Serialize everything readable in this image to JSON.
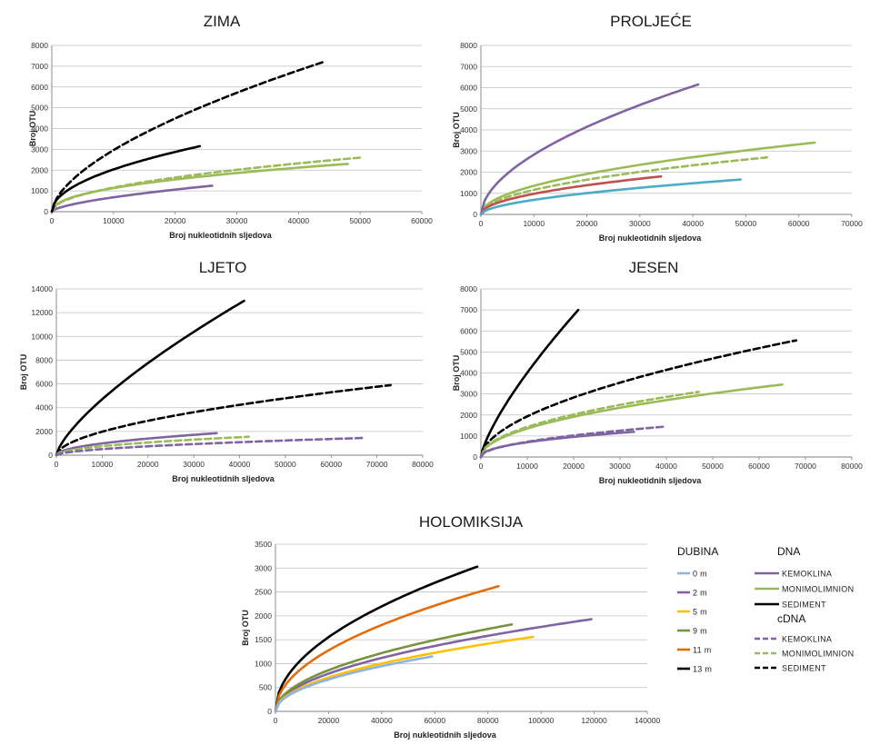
{
  "colors": {
    "purple": "#8064a2",
    "green": "#9bbb59",
    "black": "#000000",
    "red": "#c0504d",
    "blue": "#4bacc6",
    "lightblue": "#8db3e2",
    "yellow": "#ffc000",
    "olive": "#77933c",
    "orange": "#e46c0a",
    "grid": "#bfbfbf"
  },
  "chart_data": [
    {
      "type": "line",
      "title": "ZIMA",
      "xlabel": "Broj nukleotidnih sljedova",
      "ylabel": "Broj OTU",
      "xlim": [
        0,
        60000
      ],
      "ylim": [
        0,
        8000
      ],
      "xticks": [
        0,
        10000,
        20000,
        30000,
        40000,
        50000,
        60000
      ],
      "yticks": [
        0,
        1000,
        2000,
        3000,
        4000,
        5000,
        6000,
        7000,
        8000
      ],
      "xtick_labels": [
        "0",
        "10000",
        "20000",
        "30000",
        "40000",
        "50000",
        "60000"
      ],
      "ytick_labels": [
        "0",
        "1000",
        "2000",
        "3000",
        "4000",
        "5000",
        "6000",
        "7000",
        "8000"
      ],
      "series": [
        {
          "color": "purple",
          "dashed": false,
          "xmax": 26000,
          "ymax": 1250,
          "exp": 0.62
        },
        {
          "color": "green",
          "dashed": false,
          "xmax": 48000,
          "ymax": 2300,
          "exp": 0.45
        },
        {
          "color": "black",
          "dashed": false,
          "xmax": 24000,
          "ymax": 3150,
          "exp": 0.5
        },
        {
          "color": "green",
          "dashed": true,
          "xmax": 50000,
          "ymax": 2600,
          "exp": 0.5
        },
        {
          "color": "black",
          "dashed": true,
          "xmax": 44000,
          "ymax": 7200,
          "exp": 0.6
        }
      ]
    },
    {
      "type": "line",
      "title": "PROLJEĆE",
      "xlabel": "Broj nukleotidnih sljedova",
      "ylabel": "Broj OTU",
      "xlim": [
        0,
        70000
      ],
      "ylim": [
        0,
        8000
      ],
      "xticks": [
        0,
        10000,
        20000,
        30000,
        40000,
        50000,
        60000,
        70000
      ],
      "yticks": [
        0,
        1000,
        2000,
        3000,
        4000,
        5000,
        6000,
        7000,
        8000
      ],
      "xtick_labels": [
        "0",
        "10000",
        "20000",
        "30000",
        "40000",
        "50000",
        "60000",
        "70000"
      ],
      "ytick_labels": [
        "0",
        "1000",
        "2000",
        "3000",
        "4000",
        "5000",
        "6000",
        "7000",
        "8000"
      ],
      "series": [
        {
          "color": "purple",
          "dashed": false,
          "xmax": 41000,
          "ymax": 6150,
          "exp": 0.55
        },
        {
          "color": "green",
          "dashed": false,
          "xmax": 63000,
          "ymax": 3400,
          "exp": 0.5
        },
        {
          "color": "green",
          "dashed": true,
          "xmax": 54000,
          "ymax": 2700,
          "exp": 0.5
        },
        {
          "color": "red",
          "dashed": false,
          "xmax": 34000,
          "ymax": 1800,
          "exp": 0.5
        },
        {
          "color": "blue",
          "dashed": false,
          "xmax": 49000,
          "ymax": 1650,
          "exp": 0.55
        }
      ]
    },
    {
      "type": "line",
      "title": "LJETO",
      "xlabel": "Broj nukleotidnih sljedova",
      "ylabel": "Broj OTU",
      "xlim": [
        0,
        80000
      ],
      "ylim": [
        0,
        14000
      ],
      "xticks": [
        0,
        10000,
        20000,
        30000,
        40000,
        50000,
        60000,
        70000,
        80000
      ],
      "yticks": [
        0,
        2000,
        4000,
        6000,
        8000,
        10000,
        12000,
        14000
      ],
      "xtick_labels": [
        "0",
        "10000",
        "20000",
        "30000",
        "40000",
        "50000",
        "60000",
        "70000",
        "80000"
      ],
      "ytick_labels": [
        "0",
        "2000",
        "4000",
        "6000",
        "8000",
        "10000",
        "12000",
        "14000"
      ],
      "series": [
        {
          "color": "black",
          "dashed": false,
          "xmax": 41000,
          "ymax": 13000,
          "exp": 0.72
        },
        {
          "color": "black",
          "dashed": true,
          "xmax": 73000,
          "ymax": 5900,
          "exp": 0.55
        },
        {
          "color": "purple",
          "dashed": false,
          "xmax": 35000,
          "ymax": 1850,
          "exp": 0.5
        },
        {
          "color": "green",
          "dashed": true,
          "xmax": 42000,
          "ymax": 1550,
          "exp": 0.5
        },
        {
          "color": "purple",
          "dashed": true,
          "xmax": 67000,
          "ymax": 1450,
          "exp": 0.55
        }
      ]
    },
    {
      "type": "line",
      "title": "JESEN",
      "xlabel": "Broj nukleotidnih sljedova",
      "ylabel": "Broj OTU",
      "xlim": [
        0,
        80000
      ],
      "ylim": [
        0,
        8000
      ],
      "xticks": [
        0,
        10000,
        20000,
        30000,
        40000,
        50000,
        60000,
        70000,
        80000
      ],
      "yticks": [
        0,
        1000,
        2000,
        3000,
        4000,
        5000,
        6000,
        7000,
        8000
      ],
      "xtick_labels": [
        "0",
        "10000",
        "20000",
        "30000",
        "40000",
        "50000",
        "60000",
        "70000",
        "80000"
      ],
      "ytick_labels": [
        "0",
        "1000",
        "2000",
        "3000",
        "4000",
        "5000",
        "6000",
        "7000",
        "8000"
      ],
      "series": [
        {
          "color": "black",
          "dashed": false,
          "xmax": 21000,
          "ymax": 7000,
          "exp": 0.75
        },
        {
          "color": "black",
          "dashed": true,
          "xmax": 68000,
          "ymax": 5550,
          "exp": 0.55
        },
        {
          "color": "green",
          "dashed": false,
          "xmax": 65000,
          "ymax": 3450,
          "exp": 0.5
        },
        {
          "color": "green",
          "dashed": true,
          "xmax": 47000,
          "ymax": 3100,
          "exp": 0.5
        },
        {
          "color": "purple",
          "dashed": true,
          "xmax": 40000,
          "ymax": 1450,
          "exp": 0.5
        },
        {
          "color": "purple",
          "dashed": false,
          "xmax": 33000,
          "ymax": 1200,
          "exp": 0.45
        }
      ]
    },
    {
      "type": "line",
      "title": "HOLOMIKSIJA",
      "xlabel": "Broj nukleotidnih sljedova",
      "ylabel": "Broj OTU",
      "xlim": [
        0,
        140000
      ],
      "ylim": [
        0,
        3500
      ],
      "xticks": [
        0,
        20000,
        40000,
        60000,
        80000,
        100000,
        120000,
        140000
      ],
      "yticks": [
        0,
        500,
        1000,
        1500,
        2000,
        2500,
        3000,
        3500
      ],
      "xtick_labels": [
        "0",
        "20000",
        "40000",
        "60000",
        "80000",
        "100000",
        "120000",
        "140000"
      ],
      "ytick_labels": [
        "0",
        "500",
        "1000",
        "1500",
        "2000",
        "2500",
        "3000",
        "3500"
      ],
      "series": [
        {
          "color": "black",
          "dashed": false,
          "xmax": 76000,
          "ymax": 3030,
          "exp": 0.5
        },
        {
          "color": "orange",
          "dashed": false,
          "xmax": 84000,
          "ymax": 2620,
          "exp": 0.5
        },
        {
          "color": "purple",
          "dashed": false,
          "xmax": 119000,
          "ymax": 1930,
          "exp": 0.5
        },
        {
          "color": "olive",
          "dashed": false,
          "xmax": 89000,
          "ymax": 1820,
          "exp": 0.5
        },
        {
          "color": "yellow",
          "dashed": false,
          "xmax": 97000,
          "ymax": 1560,
          "exp": 0.5
        },
        {
          "color": "lightblue",
          "dashed": false,
          "xmax": 59000,
          "ymax": 1150,
          "exp": 0.5
        }
      ]
    }
  ],
  "legend": {
    "depth_title": "DUBINA",
    "depth_items": [
      {
        "label": "0 m",
        "color": "lightblue"
      },
      {
        "label": "2 m",
        "color": "purple"
      },
      {
        "label": "5 m",
        "color": "yellow"
      },
      {
        "label": "9 m",
        "color": "olive"
      },
      {
        "label": "11 m",
        "color": "orange"
      },
      {
        "label": "13 m",
        "color": "black"
      }
    ],
    "dna_title": "DNA",
    "dna_items": [
      {
        "label": "KEMOKLINA",
        "color": "purple",
        "dashed": false
      },
      {
        "label": "MONIMOLIMNION",
        "color": "green",
        "dashed": false
      },
      {
        "label": "SEDIMENT",
        "color": "black",
        "dashed": false
      }
    ],
    "cdna_title": "cDNA",
    "cdna_items": [
      {
        "label": "KEMOKLINA",
        "color": "purple",
        "dashed": true
      },
      {
        "label": "MONIMOLIMNION",
        "color": "green",
        "dashed": true
      },
      {
        "label": "SEDIMENT",
        "color": "black",
        "dashed": true
      }
    ]
  }
}
